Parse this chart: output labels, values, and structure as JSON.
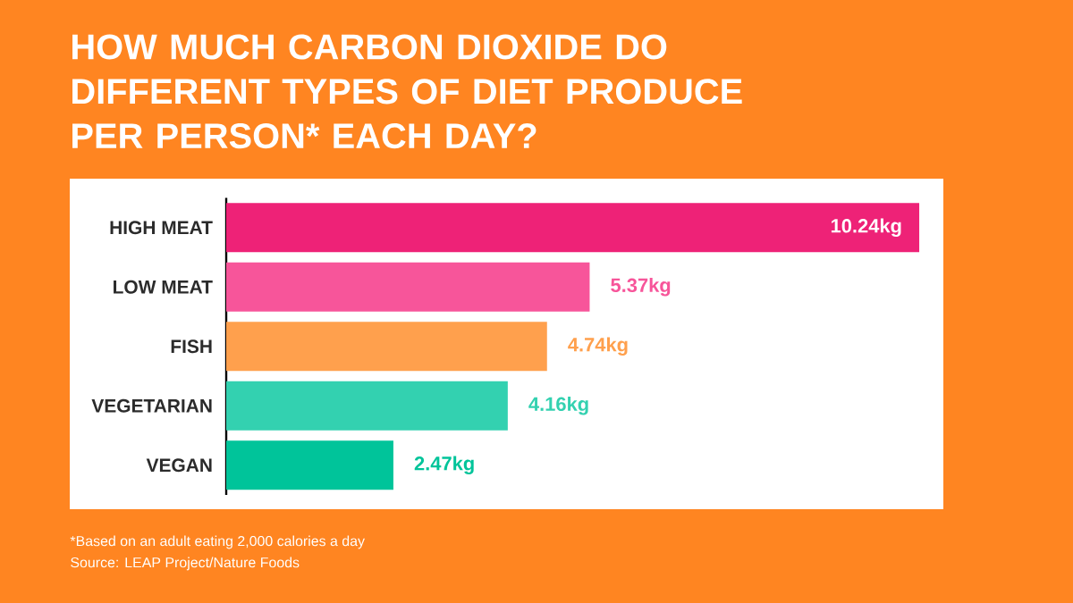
{
  "chart_data": {
    "type": "bar",
    "orientation": "horizontal",
    "title": "HOW MUCH CARBON DIOXIDE DO DIFFERENT TYPES OF DIET PRODUCE PER PERSON* EACH DAY?",
    "categories": [
      "HIGH MEAT",
      "LOW MEAT",
      "FISH",
      "VEGETARIAN",
      "VEGAN"
    ],
    "values": [
      10.24,
      5.37,
      4.74,
      4.16,
      2.47
    ],
    "colors": [
      "#ee2277",
      "#f7559a",
      "#ffa04d",
      "#33d1b0",
      "#00c49a"
    ],
    "value_labels": [
      "10.24kg",
      "5.37kg",
      "4.74kg",
      "4.16kg",
      "2.47kg"
    ],
    "xlim": [
      0,
      10.24
    ],
    "annotations": [
      "*Based on an adult eating 2,000 calories a day",
      "Source: LEAP Project/Nature Foods"
    ]
  }
}
